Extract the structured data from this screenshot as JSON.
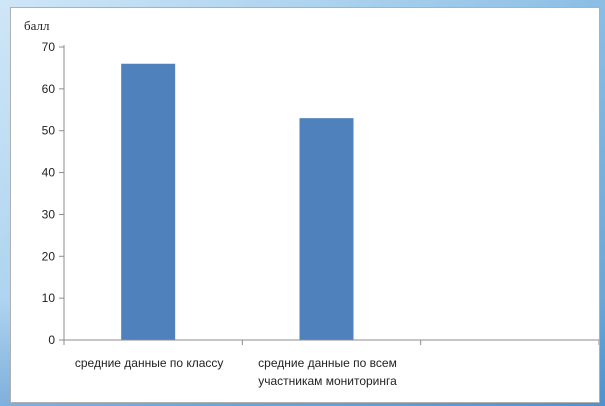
{
  "chart_data": {
    "type": "bar",
    "title": "",
    "xlabel": "",
    "ylabel": "балл",
    "ylim": [
      0,
      70
    ],
    "yticks": [
      0,
      10,
      20,
      30,
      40,
      50,
      60,
      70
    ],
    "grid": false,
    "legend": "none",
    "categories": [
      [
        "средние данные по классу"
      ],
      [
        "средние данные по всем",
        "участникам  мониторинга"
      ]
    ],
    "values": [
      66,
      53
    ],
    "bar_color": "#4f81bd"
  }
}
